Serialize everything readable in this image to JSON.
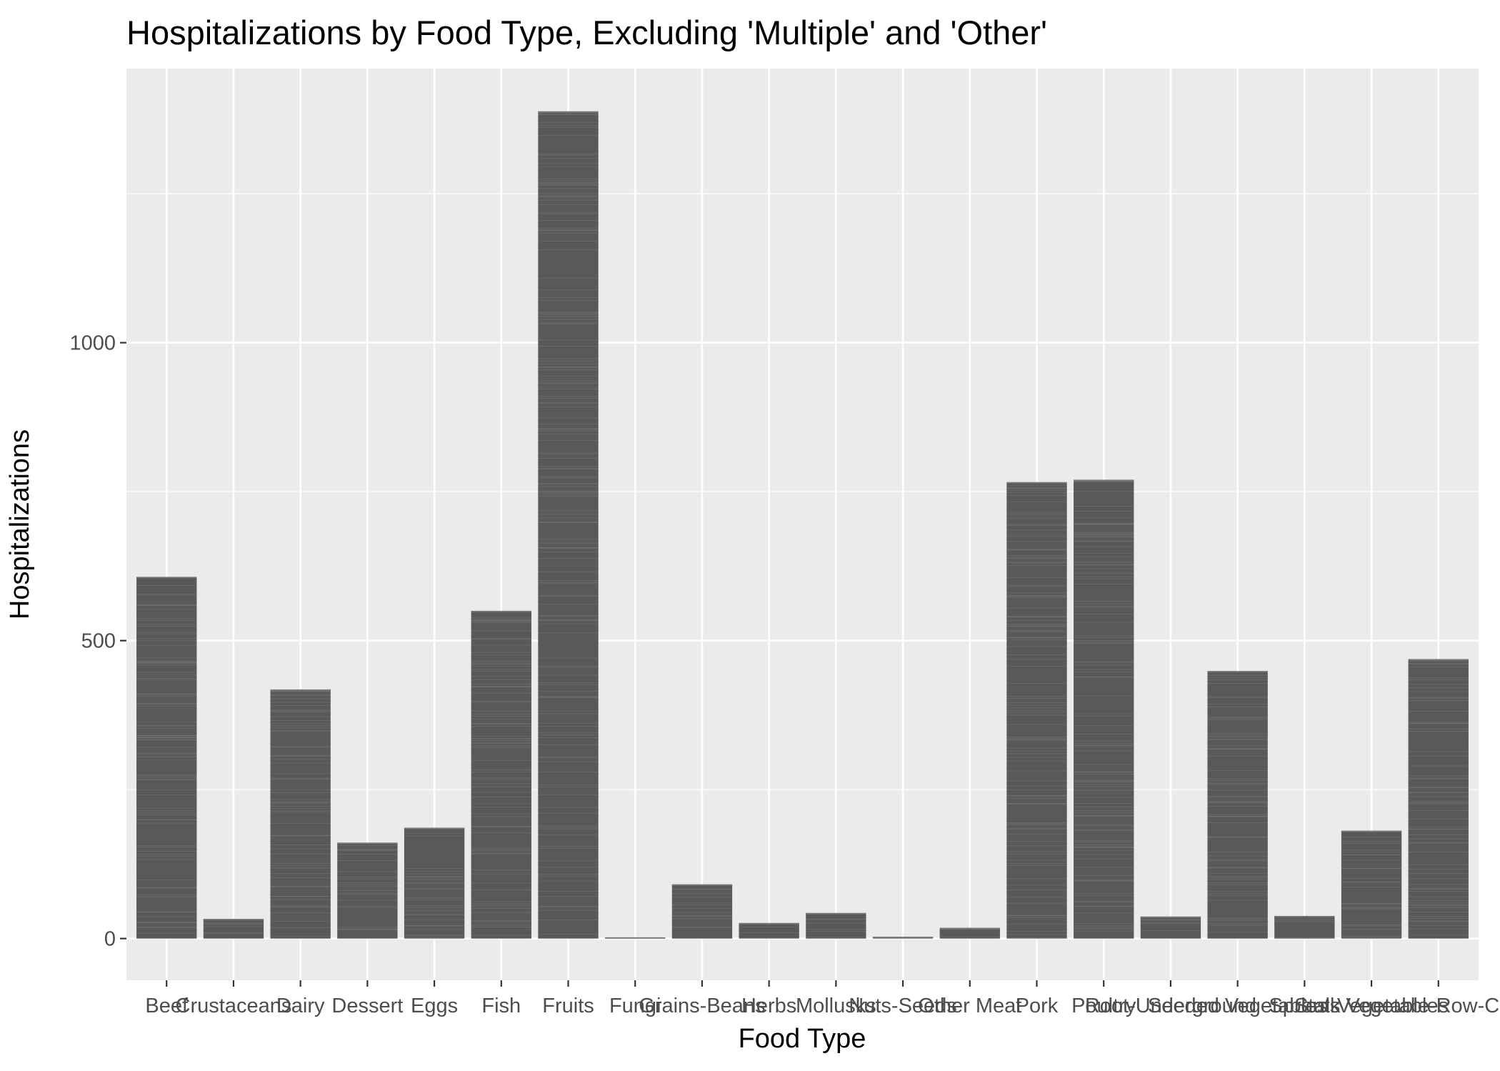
{
  "chart_data": {
    "type": "bar",
    "title": "Hospitalizations by Food Type, Excluding 'Multiple' and 'Other'",
    "xlabel": "Food Type",
    "ylabel": "Hospitalizations",
    "categories": [
      "Beef",
      "Crustaceans",
      "Dairy",
      "Dessert",
      "Eggs",
      "Fish",
      "Fruits",
      "Fungi",
      "Grains-Beans",
      "Herbs",
      "Mollusks",
      "Nuts-Seeds",
      "Other Meat",
      "Pork",
      "Poultry",
      "Root-Underground",
      "Seeded Vegetables",
      "Sprouts",
      "Stalk Vegetables",
      "Vegetable-Row-Crops"
    ],
    "values": [
      607,
      33,
      418,
      161,
      186,
      550,
      1388,
      2,
      91,
      26,
      43,
      3,
      18,
      766,
      770,
      37,
      449,
      38,
      181,
      469
    ],
    "yticks": [
      0,
      500,
      1000
    ],
    "ylim": [
      -70,
      1460
    ],
    "grid": true,
    "colors": {
      "panel": "#ebebeb",
      "grid_major": "#ffffff",
      "bar": "#595959",
      "bar_stripe": "#7a7a7a",
      "tick": "#333333"
    }
  }
}
